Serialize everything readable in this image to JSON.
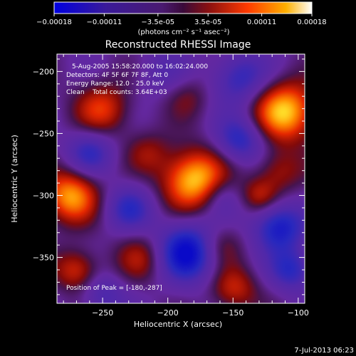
{
  "chart_data": {
    "type": "heatmap",
    "title": "Reconstructed RHESSI Image",
    "xlabel": "Heliocentric X (arcsec)",
    "ylabel": "Heliocentric Y (arcsec)",
    "xlim": [
      -285,
      -95
    ],
    "ylim": [
      -387,
      -186
    ],
    "x_ticks": [
      -250,
      -200,
      -150,
      -100
    ],
    "x_tick_labels": [
      "-250",
      "-200",
      "-150",
      "-100"
    ],
    "y_ticks": [
      -200,
      -250,
      -300,
      -350
    ],
    "y_tick_labels": [
      "-200",
      "-250",
      "-300",
      "-350"
    ],
    "colorbar": {
      "min": -0.00018,
      "max": 0.00018,
      "ticks": [
        -0.00018,
        -0.00011,
        -3.5e-05,
        3.5e-05,
        0.00011,
        0.00018
      ],
      "tick_labels": [
        "-0.00018",
        "-0.00011",
        "-3.5e-05",
        "3.5e-05",
        "0.00011",
        "0.00018"
      ],
      "units_label": "(photons cm⁻² s⁻¹ asec⁻²)"
    },
    "sources": [
      {
        "x": -180,
        "y": -287,
        "amp": 1.0,
        "sigma": 17
      },
      {
        "x": -110,
        "y": -232,
        "amp": 0.95,
        "sigma": 17
      },
      {
        "x": -275,
        "y": -300,
        "amp": 0.85,
        "sigma": 15
      },
      {
        "x": -250,
        "y": -230,
        "amp": 0.55,
        "sigma": 15
      },
      {
        "x": -270,
        "y": -360,
        "amp": 0.55,
        "sigma": 12
      },
      {
        "x": -220,
        "y": -350,
        "amp": 0.4,
        "sigma": 14
      },
      {
        "x": -150,
        "y": -375,
        "amp": 0.5,
        "sigma": 13
      },
      {
        "x": -160,
        "y": -340,
        "amp": 0.35,
        "sigma": 12
      },
      {
        "x": -115,
        "y": -280,
        "amp": 0.4,
        "sigma": 13
      },
      {
        "x": -185,
        "y": -220,
        "amp": 0.25,
        "sigma": 12
      },
      {
        "x": -215,
        "y": -265,
        "amp": 0.3,
        "sigma": 12
      },
      {
        "x": -130,
        "y": -300,
        "amp": 0.4,
        "sigma": 10
      },
      {
        "x": -185,
        "y": -345,
        "amp": -0.9,
        "sigma": 17
      },
      {
        "x": -145,
        "y": -255,
        "amp": -0.6,
        "sigma": 13
      },
      {
        "x": -115,
        "y": -325,
        "amp": -0.75,
        "sigma": 14
      },
      {
        "x": -145,
        "y": -205,
        "amp": -0.55,
        "sigma": 15
      },
      {
        "x": -260,
        "y": -265,
        "amp": -0.5,
        "sigma": 13
      },
      {
        "x": -230,
        "y": -310,
        "amp": -0.5,
        "sigma": 13
      },
      {
        "x": -250,
        "y": -380,
        "amp": -0.4,
        "sigma": 12
      },
      {
        "x": -105,
        "y": -360,
        "amp": -0.55,
        "sigma": 12
      },
      {
        "x": -205,
        "y": -200,
        "amp": -0.25,
        "sigma": 14
      },
      {
        "x": -160,
        "y": -300,
        "amp": -0.3,
        "sigma": 11
      }
    ]
  },
  "annotations": {
    "time_range": "5-Aug-2005 15:58:20.000 to 16:02:24.000",
    "detectors": "Detectors: 4F 5F 6F 7F 8F, Att 0",
    "energy": "Energy Range: 12.0 - 25.0 keV",
    "clean": "Clean    Total counts: 3.64E+03",
    "peak": "Position of Peak = [-180,-287]"
  },
  "footer": {
    "timestamp": "7-Jul-2013 06:23"
  }
}
